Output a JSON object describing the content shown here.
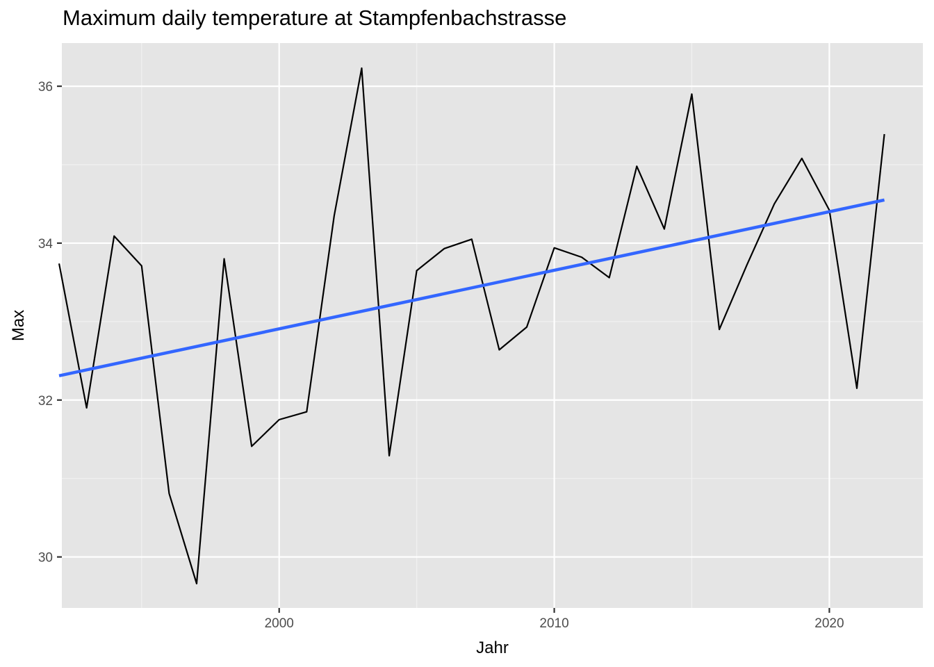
{
  "chart_data": {
    "type": "line",
    "title": "Maximum daily temperature at Stampfenbachstrasse",
    "xlabel": "Jahr",
    "ylabel": "Max",
    "xlim": [
      1992.1,
      2023.4
    ],
    "ylim": [
      29.35,
      36.55
    ],
    "x_ticks": [
      2000,
      2010,
      2020
    ],
    "x_minor_ticks": [
      1995,
      2005,
      2015
    ],
    "y_ticks": [
      30,
      32,
      34,
      36
    ],
    "y_minor_ticks": [
      31,
      33,
      35
    ],
    "grid": true,
    "legend": "none",
    "series": [
      {
        "kind": "line",
        "color": "#000000",
        "x": [
          1992,
          1993,
          1994,
          1995,
          1996,
          1997,
          1998,
          1999,
          2000,
          2001,
          2002,
          2003,
          2004,
          2005,
          2006,
          2007,
          2008,
          2009,
          2010,
          2011,
          2012,
          2013,
          2014,
          2015,
          2016,
          2017,
          2018,
          2019,
          2020,
          2021,
          2022
        ],
        "values": [
          33.74,
          31.9,
          34.09,
          33.71,
          30.81,
          29.66,
          33.8,
          31.41,
          31.75,
          31.85,
          34.35,
          36.23,
          31.29,
          33.65,
          33.93,
          34.05,
          32.64,
          32.93,
          33.94,
          33.82,
          33.56,
          34.98,
          34.18,
          35.9,
          32.9,
          33.72,
          34.5,
          35.08,
          34.42,
          32.15,
          35.39
        ]
      },
      {
        "kind": "trend",
        "color": "#3366FF",
        "x": [
          1992,
          2022
        ],
        "values": [
          32.31,
          34.55
        ]
      }
    ]
  }
}
